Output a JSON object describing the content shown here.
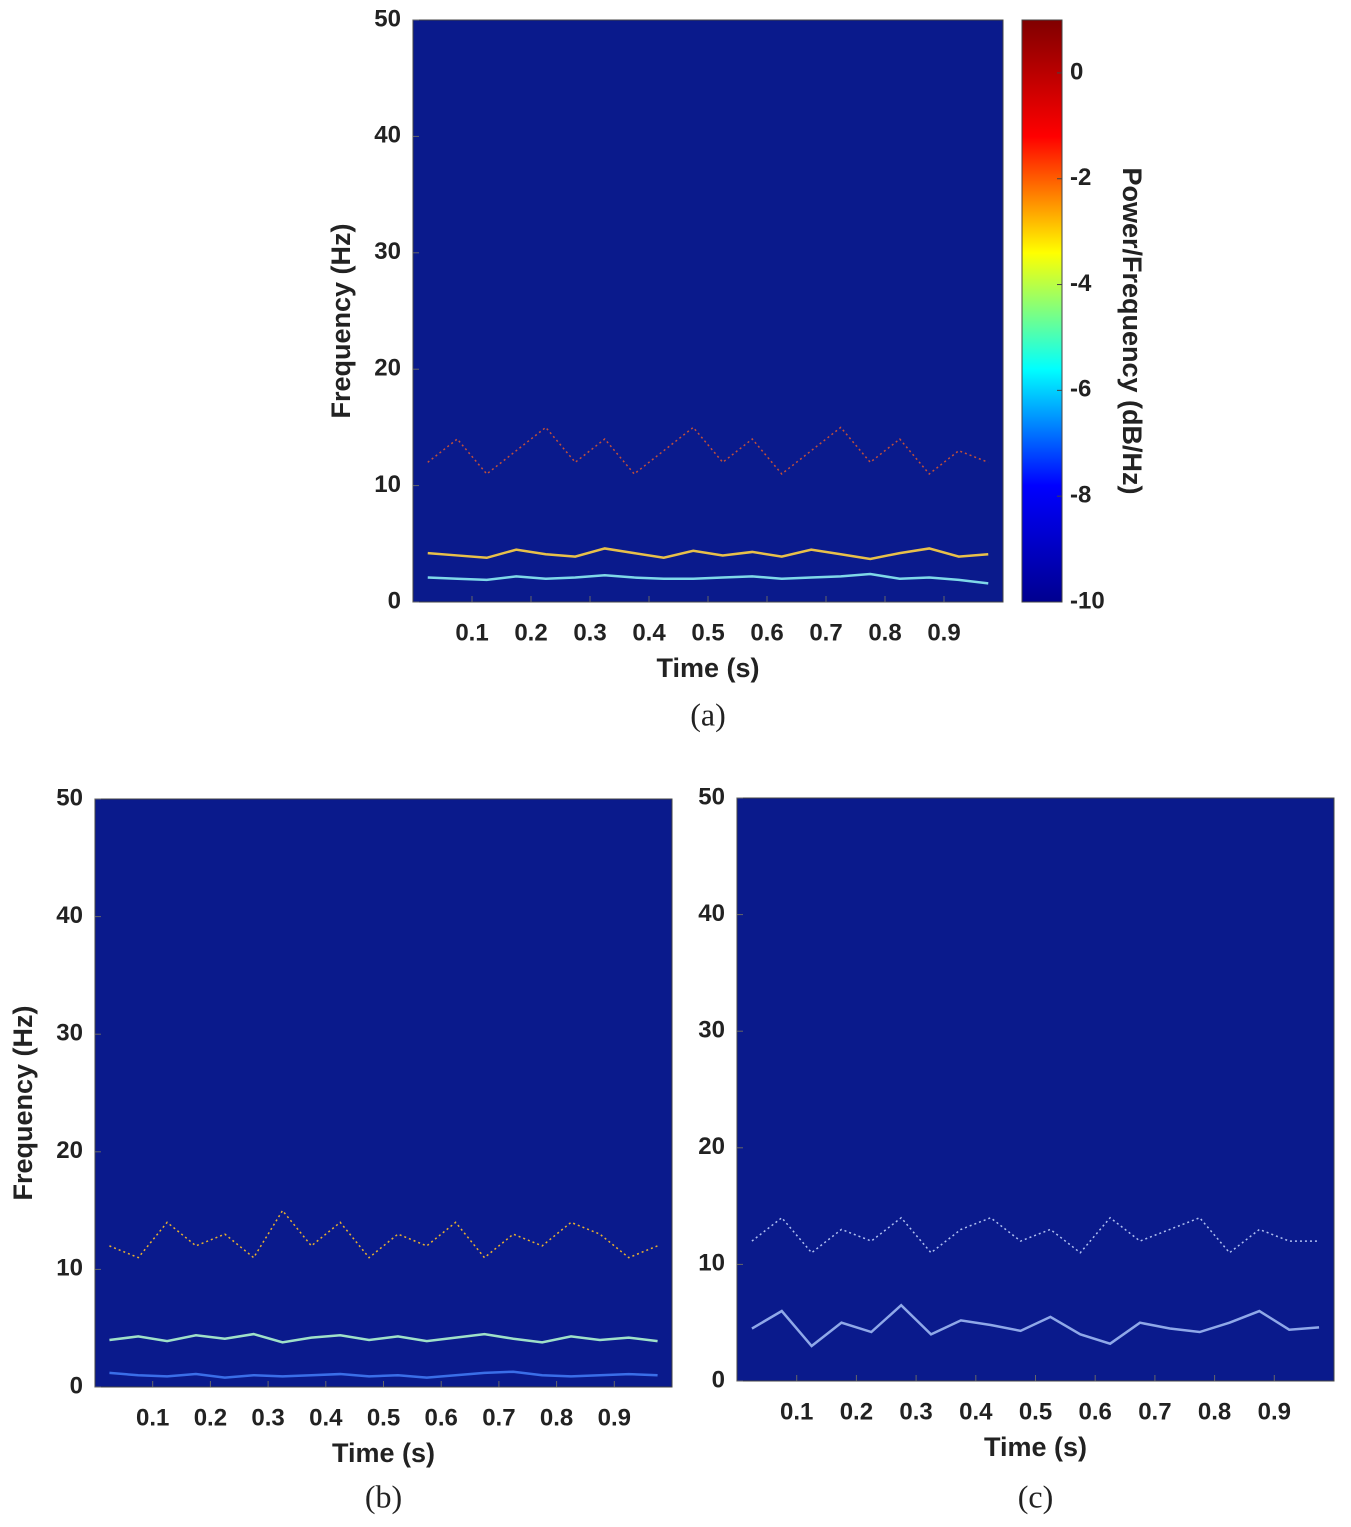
{
  "chart_data": [
    {
      "type": "spectrogram",
      "caption": "(a)",
      "xlabel": "Time (s)",
      "ylabel": "Frequency (Hz)",
      "xlim": [
        0,
        1
      ],
      "ylim": [
        0,
        50
      ],
      "xticks": [
        0.1,
        0.2,
        0.3,
        0.4,
        0.5,
        0.6,
        0.7,
        0.8,
        0.9
      ],
      "yticks": [
        0,
        10,
        20,
        30,
        40,
        50
      ],
      "background": "#0a1a8c",
      "x": [
        0.025,
        0.075,
        0.125,
        0.175,
        0.225,
        0.275,
        0.325,
        0.375,
        0.425,
        0.475,
        0.525,
        0.575,
        0.625,
        0.675,
        0.725,
        0.775,
        0.825,
        0.875,
        0.925,
        0.975
      ],
      "series": [
        {
          "color": "#e8c04a",
          "values": [
            4.2,
            4.0,
            3.8,
            4.5,
            4.1,
            3.9,
            4.6,
            4.2,
            3.8,
            4.4,
            4.0,
            4.3,
            3.9,
            4.5,
            4.1,
            3.7,
            4.2,
            4.6,
            3.9,
            4.1
          ]
        },
        {
          "color": "#7fd8e8",
          "values": [
            2.1,
            2.0,
            1.9,
            2.2,
            2.0,
            2.1,
            2.3,
            2.1,
            2.0,
            2.0,
            2.1,
            2.2,
            2.0,
            2.1,
            2.2,
            2.4,
            2.0,
            2.1,
            1.9,
            1.6
          ]
        },
        {
          "color": "#c0503a",
          "values": [
            12,
            14,
            11,
            13,
            15,
            12,
            14,
            11,
            13,
            15,
            12,
            14,
            11,
            13,
            15,
            12,
            14,
            11,
            13,
            12
          ]
        }
      ],
      "colorbar": {
        "label": "Power/Frequency (dB/Hz)",
        "clim": [
          -10,
          1
        ],
        "cticks": [
          0,
          -2,
          -4,
          -6,
          -8,
          -10
        ],
        "colormap": [
          "#00008f",
          "#0000ff",
          "#00ffff",
          "#ffff00",
          "#ff0000",
          "#800000"
        ]
      }
    },
    {
      "type": "spectrogram",
      "caption": "(b)",
      "xlabel": "Time (s)",
      "ylabel": "Frequency (Hz)",
      "xlim": [
        0,
        1
      ],
      "ylim": [
        0,
        50
      ],
      "xticks": [
        0.1,
        0.2,
        0.3,
        0.4,
        0.5,
        0.6,
        0.7,
        0.8,
        0.9
      ],
      "yticks": [
        0,
        10,
        20,
        30,
        40,
        50
      ],
      "background": "#0a1a8c",
      "x": [
        0.025,
        0.075,
        0.125,
        0.175,
        0.225,
        0.275,
        0.325,
        0.375,
        0.425,
        0.475,
        0.525,
        0.575,
        0.625,
        0.675,
        0.725,
        0.775,
        0.825,
        0.875,
        0.925,
        0.975
      ],
      "series": [
        {
          "color": "#9fe0c8",
          "values": [
            4.0,
            4.3,
            3.9,
            4.4,
            4.1,
            4.5,
            3.8,
            4.2,
            4.4,
            4.0,
            4.3,
            3.9,
            4.2,
            4.5,
            4.1,
            3.8,
            4.3,
            4.0,
            4.2,
            3.9
          ]
        },
        {
          "color": "#3a6ee8",
          "values": [
            1.2,
            1.0,
            0.9,
            1.1,
            0.8,
            1.0,
            0.9,
            1.0,
            1.1,
            0.9,
            1.0,
            0.8,
            1.0,
            1.2,
            1.3,
            1.0,
            0.9,
            1.0,
            1.1,
            1.0
          ]
        },
        {
          "color": "#e8b030",
          "values": [
            12,
            11,
            14,
            12,
            13,
            11,
            15,
            12,
            14,
            11,
            13,
            12,
            14,
            11,
            13,
            12,
            14,
            13,
            11,
            12
          ]
        }
      ]
    },
    {
      "type": "spectrogram",
      "caption": "(c)",
      "xlabel": "Time (s)",
      "xlim": [
        0,
        1
      ],
      "ylim": [
        0,
        50
      ],
      "xticks": [
        0.1,
        0.2,
        0.3,
        0.4,
        0.5,
        0.6,
        0.7,
        0.8,
        0.9
      ],
      "yticks": [
        0,
        10,
        20,
        30,
        40,
        50
      ],
      "background": "#0a1a8c",
      "x": [
        0.025,
        0.075,
        0.125,
        0.175,
        0.225,
        0.275,
        0.325,
        0.375,
        0.425,
        0.475,
        0.525,
        0.575,
        0.625,
        0.675,
        0.725,
        0.775,
        0.825,
        0.875,
        0.925,
        0.975
      ],
      "series": [
        {
          "color": "#8fa8e8",
          "values": [
            4.5,
            6.0,
            3.0,
            5.0,
            4.2,
            6.5,
            4.0,
            5.2,
            4.8,
            4.3,
            5.5,
            4.0,
            3.2,
            5.0,
            4.5,
            4.2,
            5.0,
            6.0,
            4.4,
            4.6
          ]
        },
        {
          "color": "#b0c0f0",
          "values": [
            12,
            14,
            11,
            13,
            12,
            14,
            11,
            13,
            14,
            12,
            13,
            11,
            14,
            12,
            13,
            14,
            11,
            13,
            12,
            12
          ]
        }
      ]
    }
  ]
}
